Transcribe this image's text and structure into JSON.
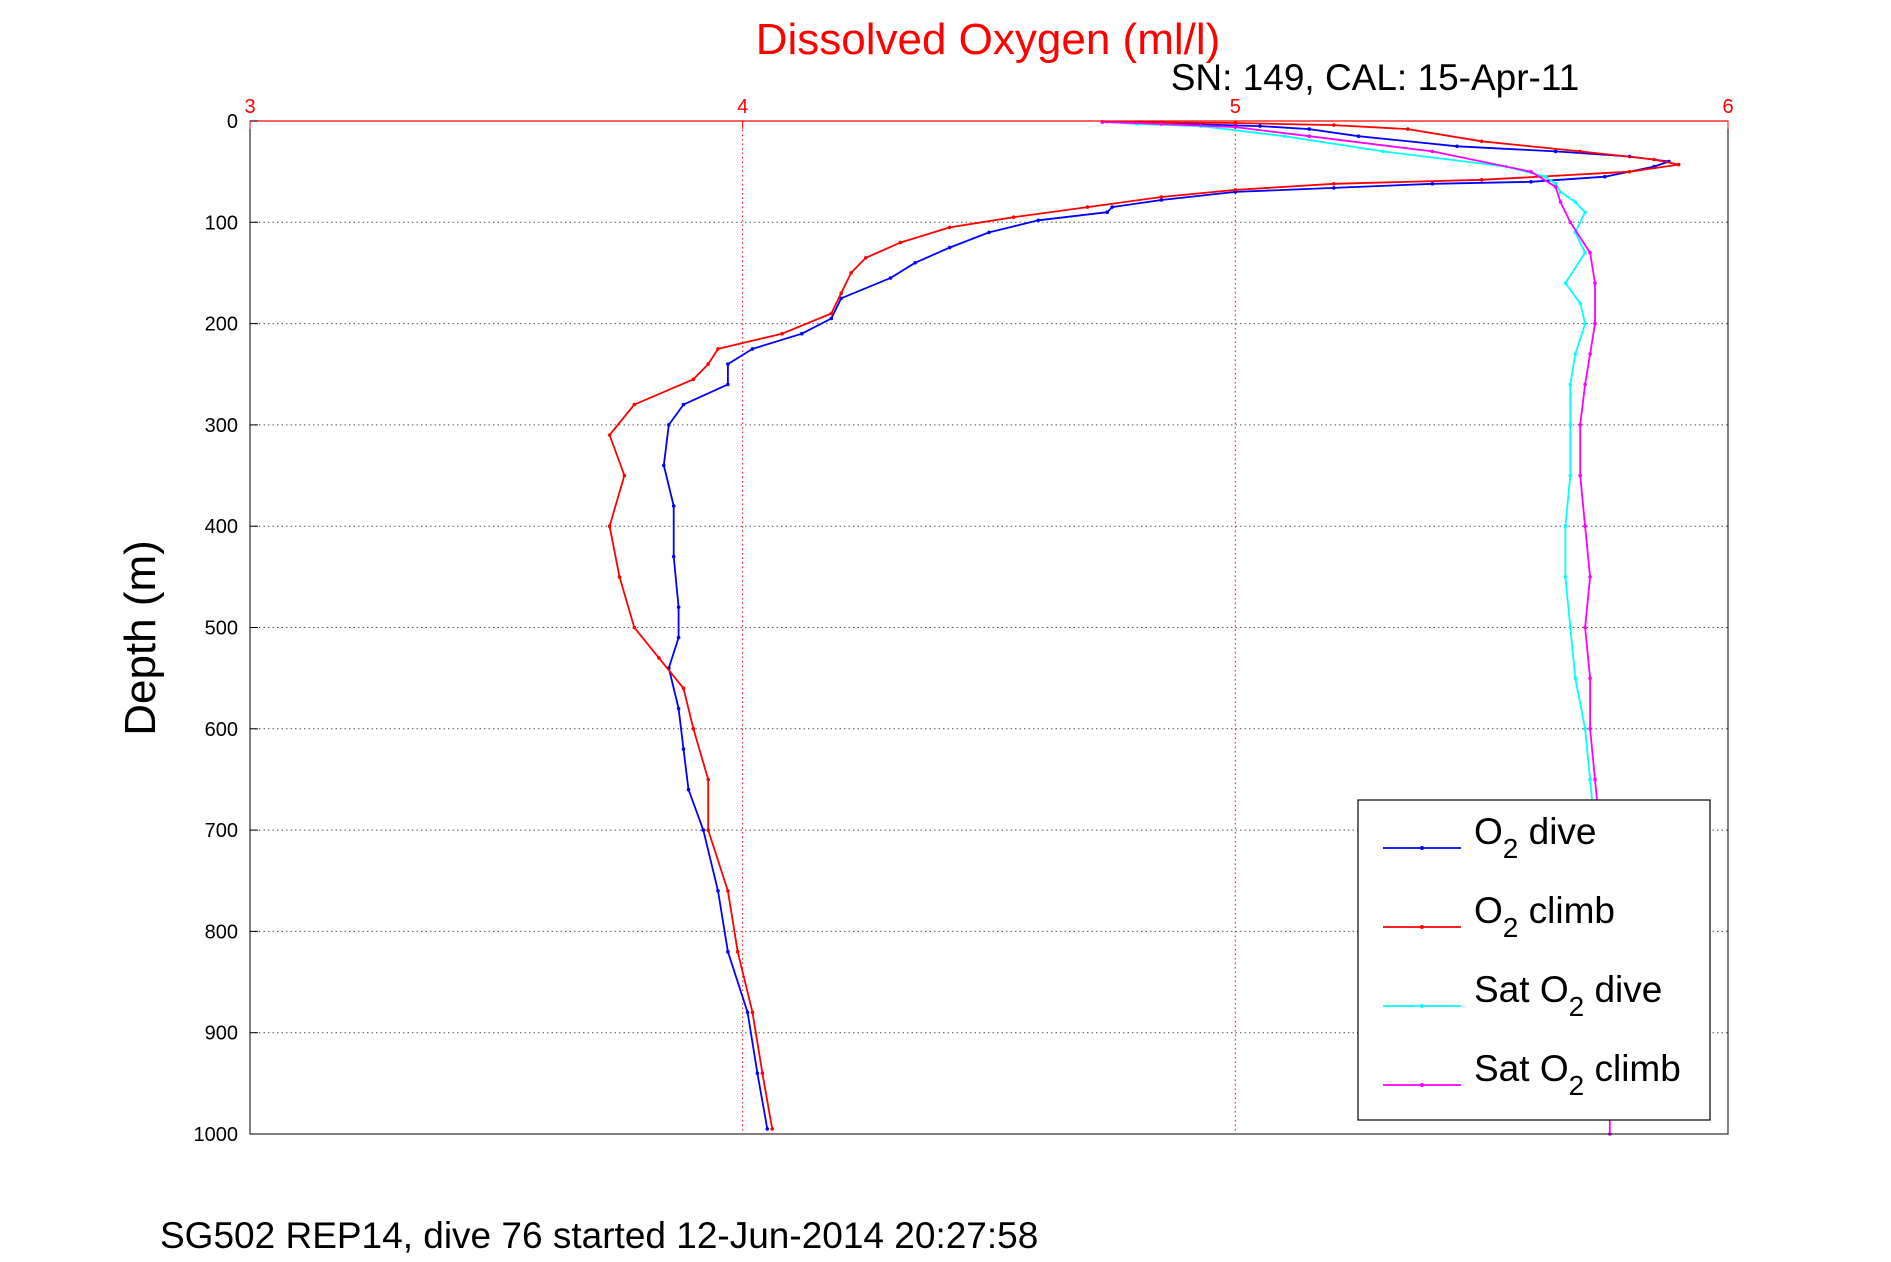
{
  "chart_data": {
    "type": "line",
    "title": "Dissolved Oxygen (ml/l)",
    "subtitle": "SN: 149, CAL: 15-Apr-11",
    "footer": "SG502 REP14, dive 76 started 12-Jun-2014 20:27:58",
    "ylabel": "Depth (m)",
    "xlim": [
      3,
      6
    ],
    "ylim": [
      0,
      1000
    ],
    "y_reversed": true,
    "x_axis_position": "top",
    "grid": true,
    "legend_placement": "bottom-right",
    "x_ticks": [
      "3",
      "4",
      "5",
      "6"
    ],
    "y_ticks": [
      "0",
      "100",
      "200",
      "300",
      "400",
      "500",
      "600",
      "700",
      "800",
      "900",
      "1000"
    ],
    "colors": {
      "title": "#ff0000",
      "x_axis": "#ff0000",
      "o2_dive": "#0000ff",
      "o2_climb": "#ff0000",
      "sat_dive": "#00ffff",
      "sat_climb": "#ff00ff"
    },
    "series": [
      {
        "legend_main": "O",
        "legend_sub": "2",
        "legend_rest": " dive",
        "color": "#0000ff",
        "points": [
          [
            4.73,
            1
          ],
          [
            4.9,
            3
          ],
          [
            5.05,
            5
          ],
          [
            5.15,
            8
          ],
          [
            5.25,
            15
          ],
          [
            5.45,
            25
          ],
          [
            5.65,
            30
          ],
          [
            5.8,
            35
          ],
          [
            5.88,
            40
          ],
          [
            5.85,
            45
          ],
          [
            5.75,
            55
          ],
          [
            5.6,
            60
          ],
          [
            5.4,
            62
          ],
          [
            5.2,
            66
          ],
          [
            5.0,
            70
          ],
          [
            4.85,
            78
          ],
          [
            4.75,
            85
          ],
          [
            4.74,
            90
          ],
          [
            4.6,
            98
          ],
          [
            4.5,
            110
          ],
          [
            4.42,
            125
          ],
          [
            4.35,
            140
          ],
          [
            4.3,
            155
          ],
          [
            4.2,
            175
          ],
          [
            4.18,
            195
          ],
          [
            4.12,
            210
          ],
          [
            4.02,
            225
          ],
          [
            3.97,
            240
          ],
          [
            3.97,
            260
          ],
          [
            3.88,
            280
          ],
          [
            3.85,
            300
          ],
          [
            3.84,
            340
          ],
          [
            3.86,
            380
          ],
          [
            3.86,
            430
          ],
          [
            3.87,
            480
          ],
          [
            3.87,
            510
          ],
          [
            3.85,
            540
          ],
          [
            3.87,
            580
          ],
          [
            3.88,
            620
          ],
          [
            3.89,
            660
          ],
          [
            3.92,
            700
          ],
          [
            3.95,
            760
          ],
          [
            3.97,
            820
          ],
          [
            4.01,
            880
          ],
          [
            4.03,
            940
          ],
          [
            4.05,
            995
          ]
        ]
      },
      {
        "legend_main": "O",
        "legend_sub": "2",
        "legend_rest": " climb",
        "color": "#ff0000",
        "points": [
          [
            4.73,
            1
          ],
          [
            5.0,
            2
          ],
          [
            5.2,
            4
          ],
          [
            5.35,
            8
          ],
          [
            5.5,
            20
          ],
          [
            5.7,
            30
          ],
          [
            5.85,
            38
          ],
          [
            5.9,
            43
          ],
          [
            5.8,
            50
          ],
          [
            5.5,
            58
          ],
          [
            5.2,
            62
          ],
          [
            5.0,
            68
          ],
          [
            4.85,
            75
          ],
          [
            4.7,
            85
          ],
          [
            4.55,
            95
          ],
          [
            4.42,
            105
          ],
          [
            4.32,
            120
          ],
          [
            4.25,
            135
          ],
          [
            4.22,
            150
          ],
          [
            4.2,
            170
          ],
          [
            4.18,
            190
          ],
          [
            4.08,
            210
          ],
          [
            3.95,
            225
          ],
          [
            3.93,
            240
          ],
          [
            3.9,
            255
          ],
          [
            3.78,
            280
          ],
          [
            3.73,
            310
          ],
          [
            3.76,
            350
          ],
          [
            3.73,
            400
          ],
          [
            3.75,
            450
          ],
          [
            3.78,
            500
          ],
          [
            3.83,
            530
          ],
          [
            3.88,
            560
          ],
          [
            3.9,
            600
          ],
          [
            3.93,
            650
          ],
          [
            3.93,
            700
          ],
          [
            3.97,
            760
          ],
          [
            3.99,
            820
          ],
          [
            4.02,
            880
          ],
          [
            4.04,
            940
          ],
          [
            4.06,
            995
          ]
        ]
      },
      {
        "legend_main": "Sat O",
        "legend_sub": "2",
        "legend_rest": " dive",
        "color": "#00ffff",
        "points": [
          [
            4.74,
            1
          ],
          [
            4.8,
            3
          ],
          [
            4.93,
            5
          ],
          [
            5.1,
            15
          ],
          [
            5.3,
            30
          ],
          [
            5.55,
            45
          ],
          [
            5.63,
            55
          ],
          [
            5.65,
            62
          ],
          [
            5.66,
            70
          ],
          [
            5.69,
            80
          ],
          [
            5.71,
            90
          ],
          [
            5.69,
            110
          ],
          [
            5.71,
            130
          ],
          [
            5.67,
            160
          ],
          [
            5.7,
            180
          ],
          [
            5.71,
            200
          ],
          [
            5.69,
            230
          ],
          [
            5.68,
            260
          ],
          [
            5.68,
            300
          ],
          [
            5.68,
            350
          ],
          [
            5.67,
            400
          ],
          [
            5.67,
            450
          ],
          [
            5.68,
            500
          ],
          [
            5.69,
            550
          ],
          [
            5.71,
            600
          ],
          [
            5.72,
            650
          ],
          [
            5.73,
            700
          ]
        ]
      },
      {
        "legend_main": "Sat O",
        "legend_sub": "2",
        "legend_rest": " climb",
        "color": "#ff00ff",
        "points": [
          [
            4.73,
            1
          ],
          [
            4.85,
            3
          ],
          [
            5.0,
            6
          ],
          [
            5.15,
            15
          ],
          [
            5.4,
            30
          ],
          [
            5.6,
            50
          ],
          [
            5.65,
            65
          ],
          [
            5.66,
            80
          ],
          [
            5.68,
            100
          ],
          [
            5.72,
            130
          ],
          [
            5.73,
            160
          ],
          [
            5.73,
            200
          ],
          [
            5.72,
            230
          ],
          [
            5.71,
            260
          ],
          [
            5.7,
            300
          ],
          [
            5.7,
            350
          ],
          [
            5.71,
            400
          ],
          [
            5.72,
            450
          ],
          [
            5.71,
            500
          ],
          [
            5.72,
            550
          ],
          [
            5.72,
            600
          ],
          [
            5.73,
            650
          ],
          [
            5.74,
            700
          ],
          [
            5.75,
            800
          ],
          [
            5.76,
            900
          ],
          [
            5.76,
            1000
          ]
        ]
      }
    ]
  }
}
